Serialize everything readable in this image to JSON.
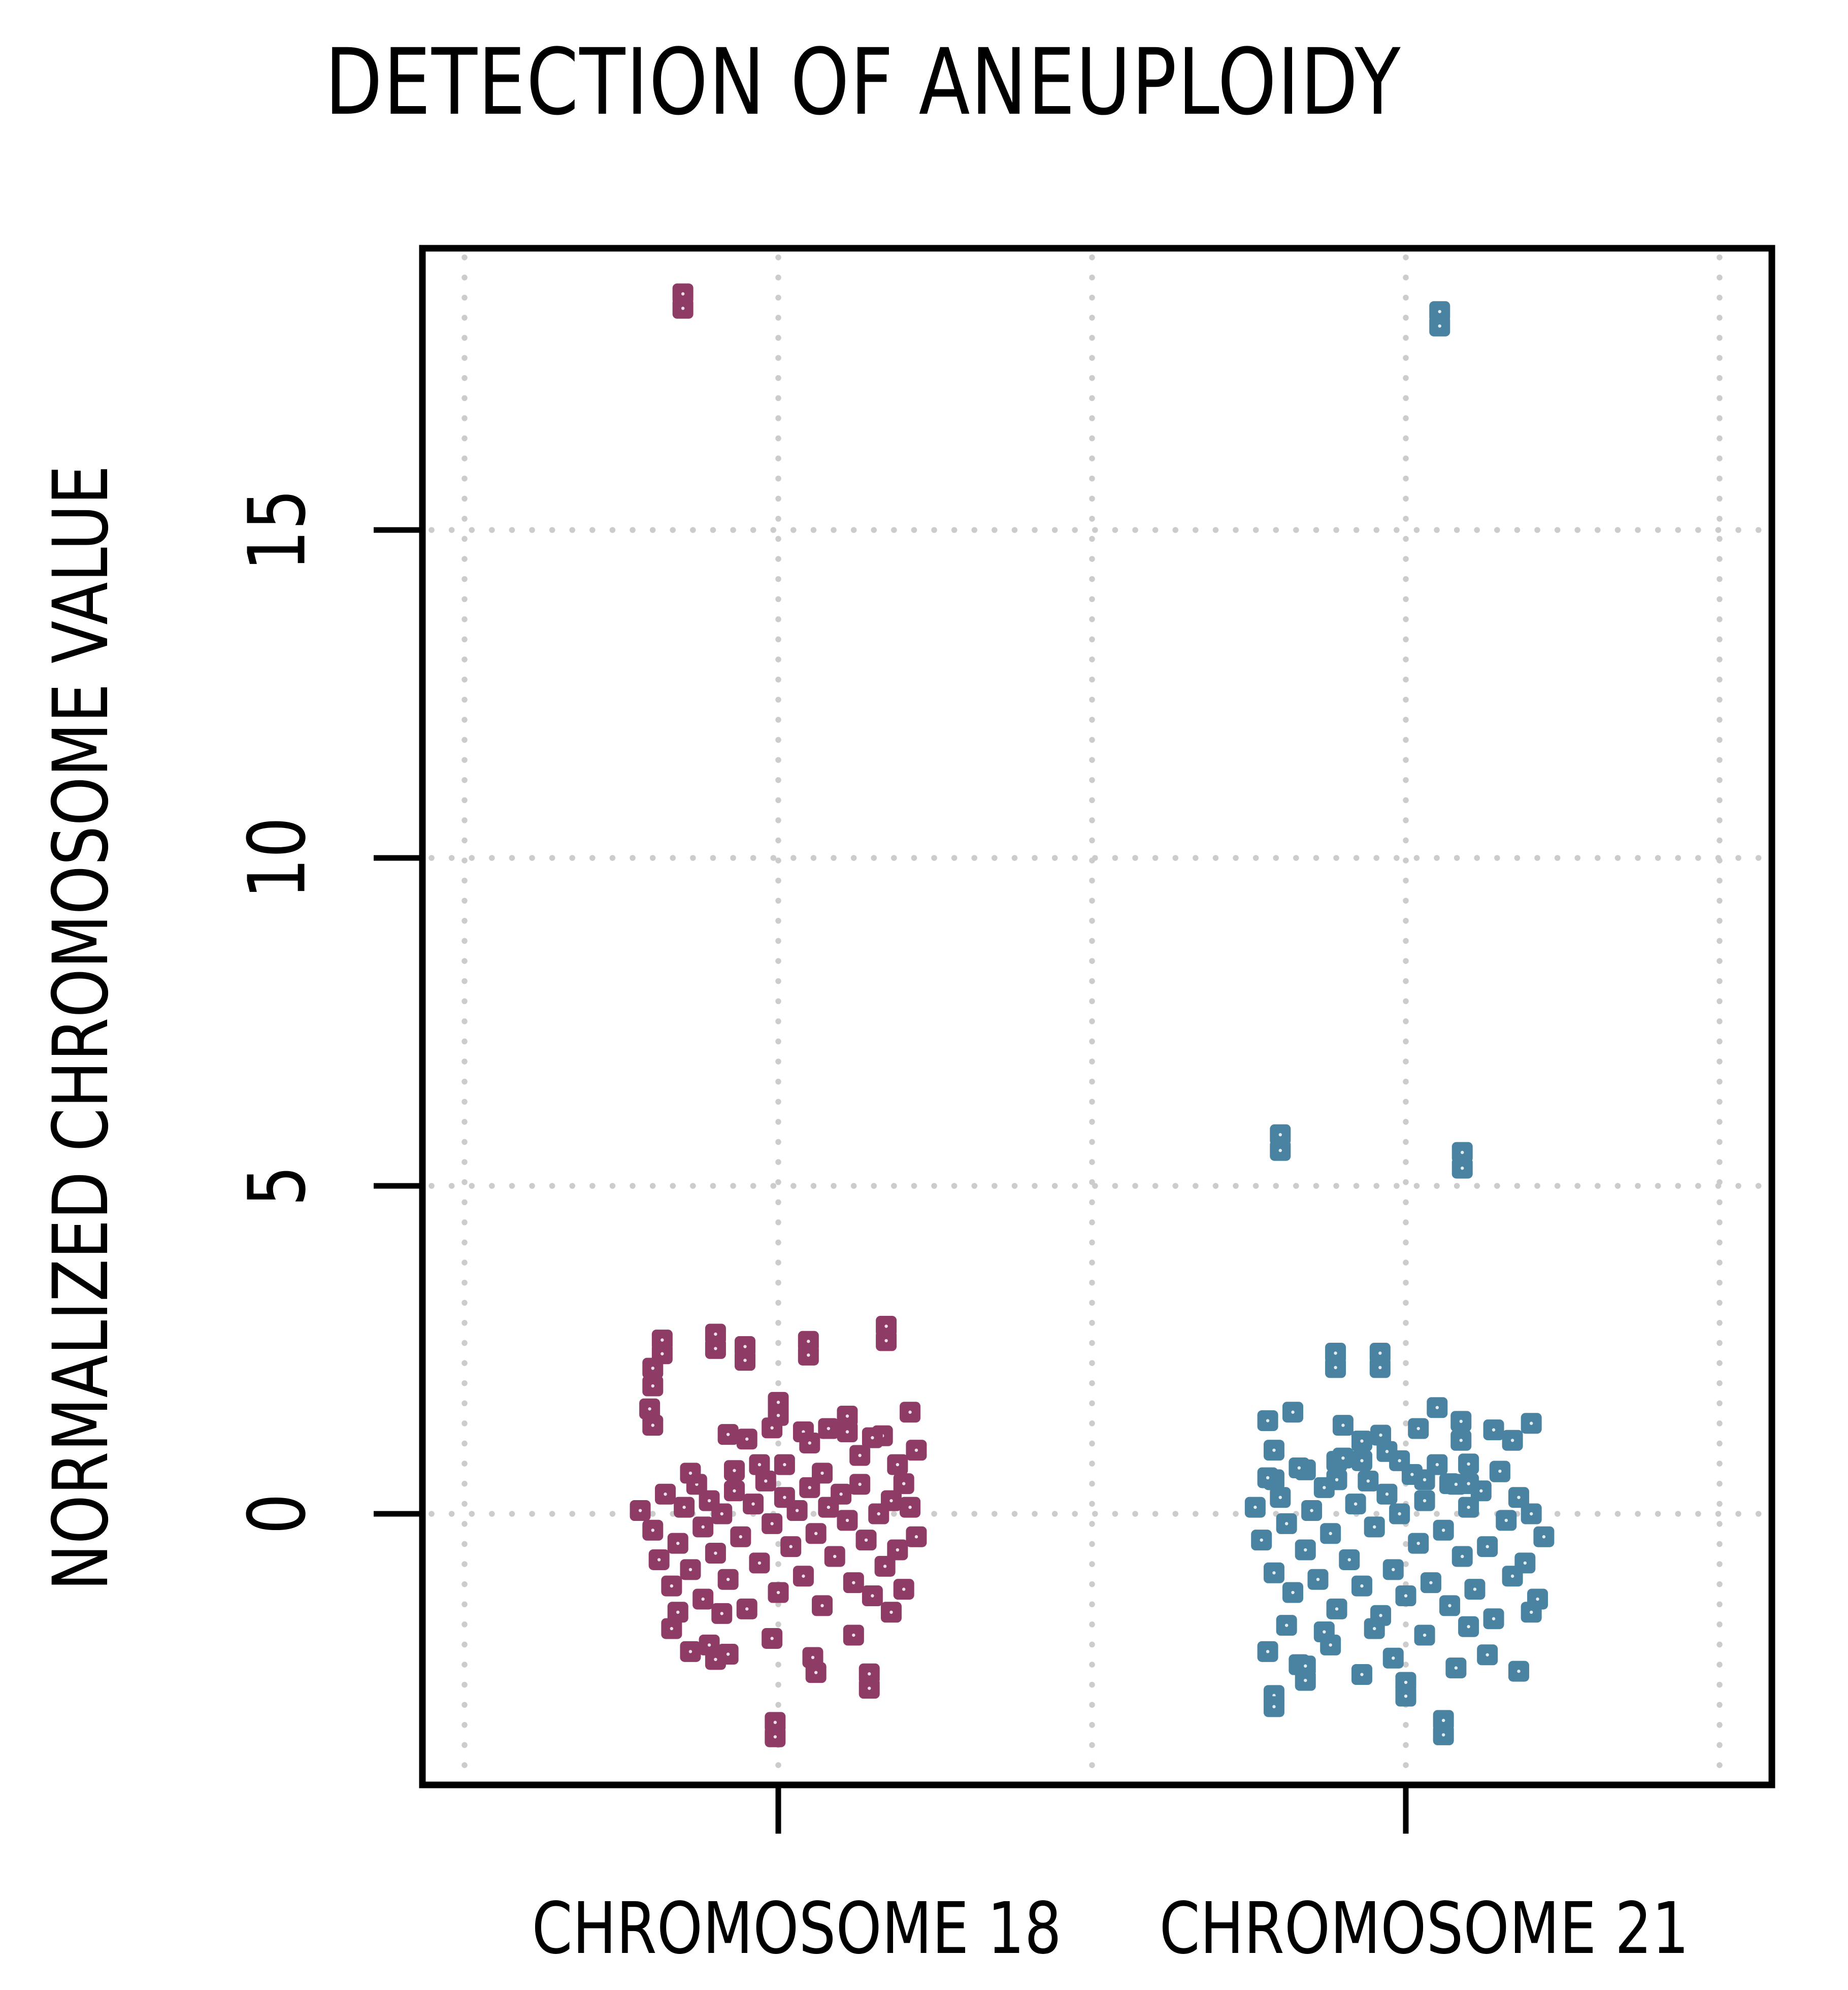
{
  "title": "DETECTION OF ANEUPLOIDY",
  "chart_data": {
    "type": "scatter",
    "subtype": "jittered-strip-plot",
    "title": "DETECTION OF ANEUPLOIDY",
    "xlabel": "",
    "ylabel": "NORMALIZED CHROMOSOME VALUE",
    "categories": [
      "CHROMOSOME 18",
      "CHROMOSOME 21"
    ],
    "category_positions": [
      1,
      2
    ],
    "y_ticks": [
      0,
      5,
      10,
      15
    ],
    "y_tick_labels": [
      "0",
      "5",
      "10",
      "15"
    ],
    "ylim": [
      -4.15,
      19.3
    ],
    "xlim": [
      0.43,
      2.58
    ],
    "grid": "dotted light-gray; vertical at x 0.5,1.0,1.5,2.0,2.5; horizontal at y 0,5,10,15",
    "gridline_x_positions": [
      0.5,
      1.0,
      1.5,
      2.0,
      2.5
    ],
    "legend_position": "none",
    "marker_shape": "rounded-square",
    "colors": {
      "chromosome_18": "#8E3B66",
      "chromosome_21": "#4A83A1",
      "gridline": "#cccccc",
      "axis": "#000000",
      "background": "#ffffff",
      "marker_center_dot": "#ffffff"
    },
    "annotations": {
      "outliers_chromosome_18": "two overlapping points near y=18.5 (trisomy 18 positive sample)",
      "outliers_chromosome_21": "two overlapping points near y=18.2 and two pairs near y=5.3-5.8 (trisomy 21 positive samples)"
    },
    "series": [
      {
        "name": "CHROMOSOME 18",
        "color": "#8E3B66",
        "points": [
          [
            0.848,
            18.6
          ],
          [
            0.848,
            18.38
          ],
          [
            0.815,
            2.65
          ],
          [
            0.815,
            2.44
          ],
          [
            0.9,
            2.74
          ],
          [
            0.9,
            2.52
          ],
          [
            0.947,
            2.55
          ],
          [
            0.947,
            2.34
          ],
          [
            1.048,
            2.63
          ],
          [
            1.048,
            2.42
          ],
          [
            1.172,
            2.86
          ],
          [
            1.172,
            2.64
          ],
          [
            0.8,
            2.22
          ],
          [
            0.8,
            1.95
          ],
          [
            0.795,
            1.6
          ],
          [
            0.8,
            1.35
          ],
          [
            1.0,
            1.7
          ],
          [
            1.0,
            1.5
          ],
          [
            0.99,
            1.31
          ],
          [
            1.04,
            1.25
          ],
          [
            1.11,
            1.49
          ],
          [
            1.11,
            1.25
          ],
          [
            1.166,
            1.19
          ],
          [
            0.92,
            1.21
          ],
          [
            0.95,
            1.14
          ],
          [
            1.05,
            1.08
          ],
          [
            1.08,
            1.3
          ],
          [
            1.15,
            1.16
          ],
          [
            1.21,
            1.55
          ],
          [
            1.22,
            0.97
          ],
          [
            0.93,
            0.66
          ],
          [
            0.97,
            0.75
          ],
          [
            1.01,
            0.75
          ],
          [
            1.19,
            0.75
          ],
          [
            1.2,
            0.46
          ],
          [
            1.13,
            0.89
          ],
          [
            0.78,
            0.05
          ],
          [
            0.8,
            -0.25
          ],
          [
            0.81,
            -0.7
          ],
          [
            0.82,
            0.3
          ],
          [
            0.83,
            -1.1
          ],
          [
            0.84,
            -0.45
          ],
          [
            0.85,
            0.1
          ],
          [
            0.86,
            -0.85
          ],
          [
            0.87,
            0.45
          ],
          [
            0.88,
            -0.2
          ],
          [
            0.88,
            -1.3
          ],
          [
            0.89,
            0.2
          ],
          [
            0.9,
            -0.6
          ],
          [
            0.91,
            0.0
          ],
          [
            0.92,
            -1.0
          ],
          [
            0.93,
            0.35
          ],
          [
            0.94,
            -0.35
          ],
          [
            0.95,
            -1.45
          ],
          [
            0.96,
            0.15
          ],
          [
            0.97,
            -0.75
          ],
          [
            0.98,
            0.5
          ],
          [
            0.99,
            -0.15
          ],
          [
            1.0,
            -1.2
          ],
          [
            1.01,
            0.25
          ],
          [
            1.02,
            -0.5
          ],
          [
            1.03,
            0.05
          ],
          [
            1.04,
            -0.95
          ],
          [
            1.05,
            0.4
          ],
          [
            1.06,
            -0.3
          ],
          [
            1.07,
            -1.4
          ],
          [
            1.08,
            0.1
          ],
          [
            1.09,
            -0.65
          ],
          [
            1.1,
            0.3
          ],
          [
            1.11,
            -0.1
          ],
          [
            1.12,
            -1.05
          ],
          [
            1.13,
            0.45
          ],
          [
            1.14,
            -0.4
          ],
          [
            1.15,
            -1.25
          ],
          [
            1.16,
            0.0
          ],
          [
            1.17,
            -0.8
          ],
          [
            1.18,
            0.2
          ],
          [
            1.19,
            -0.55
          ],
          [
            1.2,
            -1.15
          ],
          [
            1.21,
            0.1
          ],
          [
            1.22,
            -0.35
          ],
          [
            0.84,
            -1.5
          ],
          [
            0.91,
            -1.52
          ],
          [
            1.18,
            -1.5
          ],
          [
            0.86,
            0.62
          ],
          [
            1.07,
            0.62
          ],
          [
            0.83,
            -1.75
          ],
          [
            0.99,
            -1.9
          ],
          [
            1.12,
            -1.85
          ],
          [
            0.89,
            -2.0
          ],
          [
            0.86,
            -2.1
          ],
          [
            0.9,
            -2.22
          ],
          [
            0.92,
            -2.14
          ],
          [
            1.06,
            -2.42
          ],
          [
            1.145,
            -2.44
          ],
          [
            1.145,
            -2.66
          ],
          [
            1.055,
            -2.19
          ],
          [
            0.995,
            -3.18
          ],
          [
            0.995,
            -3.4
          ]
        ]
      },
      {
        "name": "CHROMOSOME 21",
        "color": "#4A83A1",
        "points": [
          [
            2.054,
            18.33
          ],
          [
            2.054,
            18.11
          ],
          [
            1.8,
            5.78
          ],
          [
            1.8,
            5.54
          ],
          [
            2.09,
            5.51
          ],
          [
            2.09,
            5.27
          ],
          [
            1.888,
            2.45
          ],
          [
            1.888,
            2.23
          ],
          [
            1.959,
            2.45
          ],
          [
            1.959,
            2.23
          ],
          [
            2.088,
            1.41
          ],
          [
            2.088,
            1.12
          ],
          [
            1.79,
            0.97
          ],
          [
            1.79,
            0.52
          ],
          [
            1.84,
            0.67
          ],
          [
            1.89,
            0.8
          ],
          [
            1.89,
            0.52
          ],
          [
            1.93,
            1.11
          ],
          [
            1.93,
            0.81
          ],
          [
            1.97,
            0.95
          ],
          [
            1.99,
            0.81
          ],
          [
            2.03,
            0.52
          ],
          [
            2.07,
            0.46
          ],
          [
            2.1,
            0.76
          ],
          [
            2.1,
            0.46
          ],
          [
            2.15,
            0.64
          ],
          [
            1.82,
            1.55
          ],
          [
            1.96,
            1.2
          ],
          [
            2.02,
            1.3
          ],
          [
            2.14,
            1.28
          ],
          [
            2.2,
            1.38
          ],
          [
            1.78,
            1.42
          ],
          [
            2.17,
            1.12
          ],
          [
            1.9,
            1.35
          ],
          [
            2.05,
            1.62
          ],
          [
            1.76,
            0.1
          ],
          [
            1.77,
            -0.4
          ],
          [
            1.78,
            0.55
          ],
          [
            1.79,
            -0.9
          ],
          [
            1.8,
            0.25
          ],
          [
            1.81,
            -0.15
          ],
          [
            1.82,
            -1.2
          ],
          [
            1.83,
            0.7
          ],
          [
            1.84,
            -0.55
          ],
          [
            1.85,
            0.05
          ],
          [
            1.86,
            -1.0
          ],
          [
            1.87,
            0.4
          ],
          [
            1.88,
            -0.3
          ],
          [
            1.89,
            -1.45
          ],
          [
            1.9,
            0.85
          ],
          [
            1.91,
            -0.7
          ],
          [
            1.92,
            0.15
          ],
          [
            1.93,
            -1.1
          ],
          [
            1.94,
            0.5
          ],
          [
            1.95,
            -0.2
          ],
          [
            1.96,
            -1.55
          ],
          [
            1.97,
            0.3
          ],
          [
            1.98,
            -0.85
          ],
          [
            1.99,
            0.0
          ],
          [
            2.0,
            -1.25
          ],
          [
            2.01,
            0.6
          ],
          [
            2.02,
            -0.45
          ],
          [
            2.03,
            0.2
          ],
          [
            2.04,
            -1.05
          ],
          [
            2.05,
            0.75
          ],
          [
            2.06,
            -0.25
          ],
          [
            2.07,
            -1.4
          ],
          [
            2.08,
            0.45
          ],
          [
            2.09,
            -0.65
          ],
          [
            2.1,
            0.1
          ],
          [
            2.11,
            -1.15
          ],
          [
            2.12,
            0.35
          ],
          [
            2.13,
            -0.5
          ],
          [
            2.14,
            -1.6
          ],
          [
            2.15,
            0.65
          ],
          [
            2.16,
            -0.1
          ],
          [
            2.17,
            -0.95
          ],
          [
            2.18,
            0.25
          ],
          [
            2.19,
            -0.75
          ],
          [
            2.2,
            0.0
          ],
          [
            2.21,
            -1.3
          ],
          [
            2.22,
            -0.35
          ],
          [
            1.81,
            -1.7
          ],
          [
            1.95,
            -1.75
          ],
          [
            2.1,
            -1.72
          ],
          [
            2.2,
            -1.5
          ],
          [
            1.87,
            -1.8
          ],
          [
            2.03,
            -1.85
          ],
          [
            1.78,
            -2.1
          ],
          [
            1.83,
            -2.3
          ],
          [
            1.88,
            -2.0
          ],
          [
            1.93,
            -2.45
          ],
          [
            1.98,
            -2.2
          ],
          [
            2.08,
            -2.35
          ],
          [
            2.13,
            -2.15
          ],
          [
            2.18,
            -2.4
          ],
          [
            1.84,
            -2.32
          ],
          [
            1.84,
            -2.54
          ],
          [
            2.0,
            -2.57
          ],
          [
            2.0,
            -2.78
          ],
          [
            1.79,
            -2.77
          ],
          [
            1.79,
            -2.94
          ],
          [
            2.06,
            -3.15
          ],
          [
            2.06,
            -3.37
          ]
        ]
      }
    ]
  }
}
